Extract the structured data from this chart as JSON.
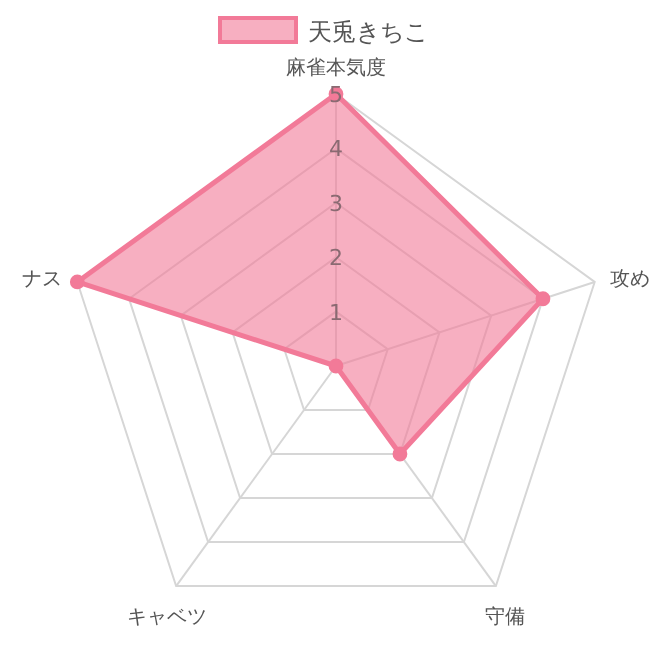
{
  "chart_data": {
    "type": "radar",
    "categories": [
      "麻雀本気度",
      "攻め",
      "守備",
      "キャベツ",
      "ナス"
    ],
    "series": [
      {
        "name": "天兎きちこ",
        "color": "#f27a98",
        "values": [
          5,
          4,
          2,
          0,
          5
        ]
      }
    ],
    "ylim": [
      0,
      5
    ],
    "yticks": [
      1,
      2,
      3,
      4,
      5
    ],
    "grid": true,
    "legend": "top",
    "marker": "circle"
  }
}
